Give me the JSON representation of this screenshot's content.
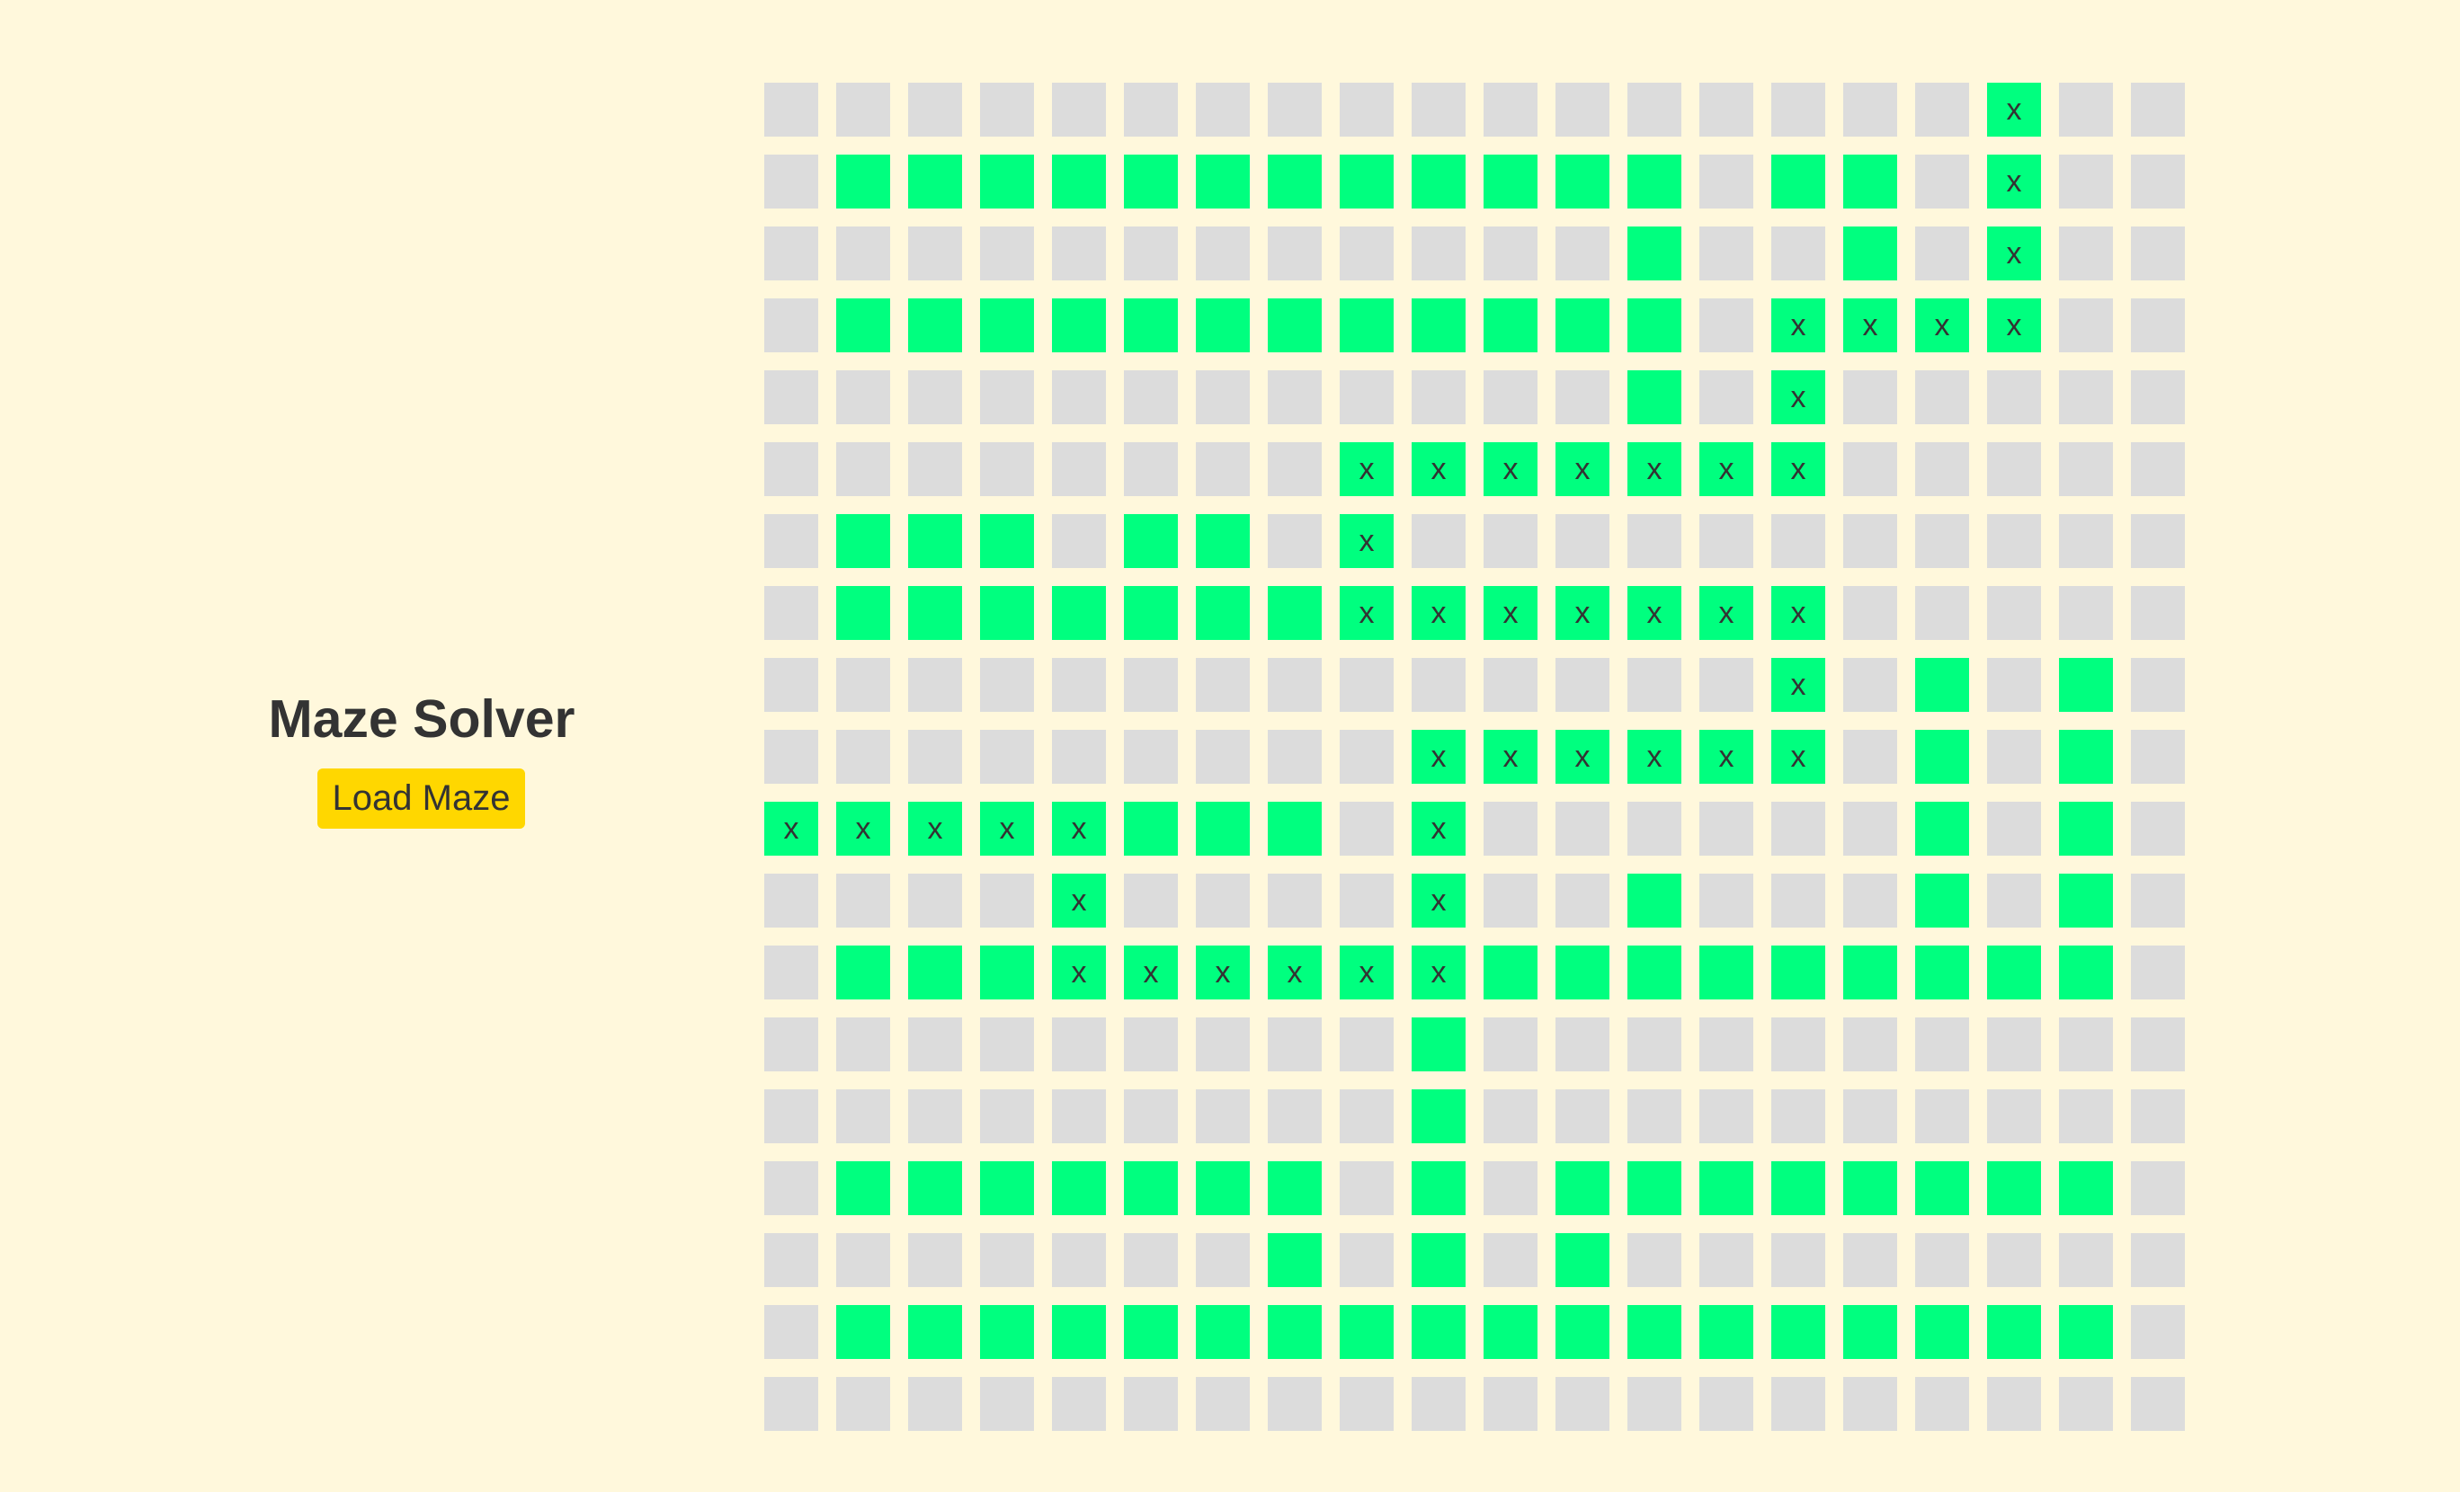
{
  "title": "Maze Solver",
  "load_button_label": "Load Maze",
  "path_mark": "x",
  "colors": {
    "background": "#fff8dc",
    "wall": "#dcdcdc",
    "open": "#00ff7f",
    "button": "#ffd700",
    "text": "#333333"
  },
  "maze": {
    "legend": {
      "#": "wall",
      ".": "open",
      "x": "path"
    },
    "rows": [
      "#################x##",
      "#............#..#x##",
      "############.##.#x##",
      "#............#xxxx##",
      "############.#x#####",
      "########xxxxxxx#####",
      "#...#..#x###########",
      "#.......xxxxxxx#####",
      "##############x#.#.#",
      "#########xxxxxx#.#.#",
      "xxxxx...#x######.#.#",
      "####x####x##.###.#.#",
      "#...xxxxxx.........#",
      "#########.##########",
      "#########.##########",
      "#.......#.#........#",
      "#######.#.#.########",
      "#..................#",
      "####################"
    ]
  }
}
